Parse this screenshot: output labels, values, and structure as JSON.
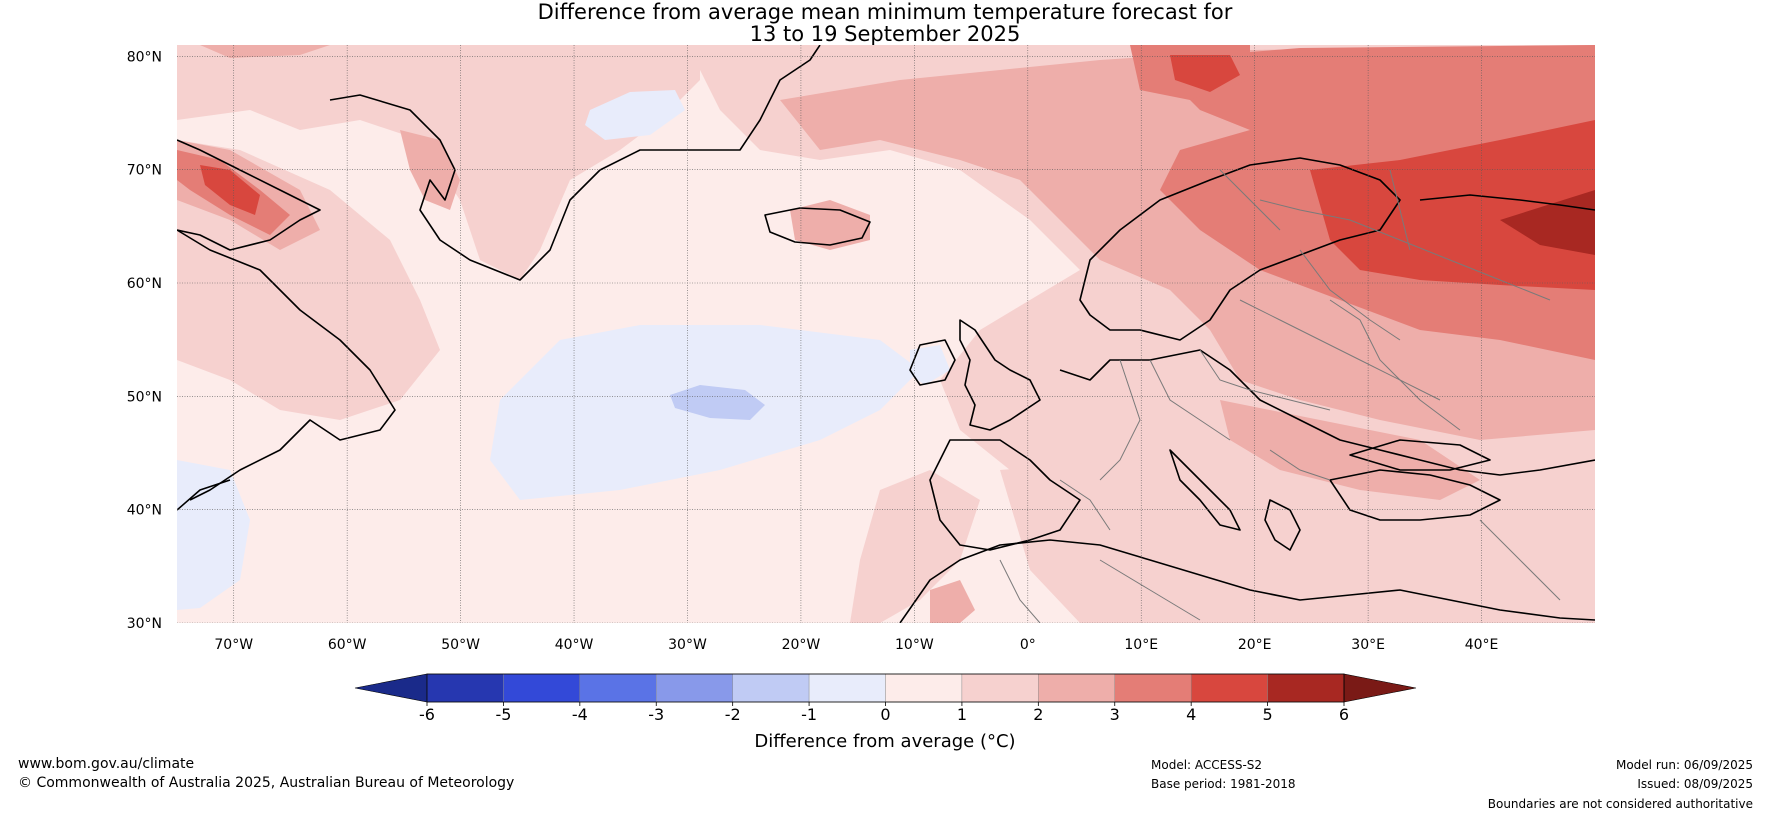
{
  "title_line1": "Difference from average mean minimum temperature forecast for",
  "title_line2": "13 to 19 September 2025",
  "map": {
    "lat_ticks": [
      "80°N",
      "70°N",
      "60°N",
      "50°N",
      "40°N",
      "30°N"
    ],
    "lon_ticks": [
      "70°W",
      "60°W",
      "50°W",
      "40°W",
      "30°W",
      "20°W",
      "10°W",
      "0°",
      "10°E",
      "20°E",
      "30°E",
      "40°E"
    ],
    "extent": {
      "lon_min": -75,
      "lon_max": 50,
      "lat_min": 30,
      "lat_max": 81
    }
  },
  "colorbar": {
    "ticks": [
      "-6",
      "-5",
      "-4",
      "-3",
      "-2",
      "-1",
      "0",
      "1",
      "2",
      "3",
      "4",
      "5",
      "6"
    ],
    "colors": [
      "#1a2a8a",
      "#2637b0",
      "#3349d8",
      "#5a73e6",
      "#8899ea",
      "#c0cbf4",
      "#e8ecfb",
      "#fdecea",
      "#f6d1cf",
      "#eeaeaa",
      "#e47d76",
      "#d8473e",
      "#a82822",
      "#7a1a16"
    ],
    "label": "Difference from average (°C)"
  },
  "footer": {
    "website": "www.bom.gov.au/climate",
    "copyright": "© Commonwealth of Australia 2025, Australian Bureau of Meteorology",
    "model": "Model: ACCESS-S2",
    "base_period": "Base period: 1981-2018",
    "model_run": "Model run: 06/09/2025",
    "issued": "Issued: 08/09/2025",
    "disclaimer": "Boundaries are not considered authoritative"
  }
}
